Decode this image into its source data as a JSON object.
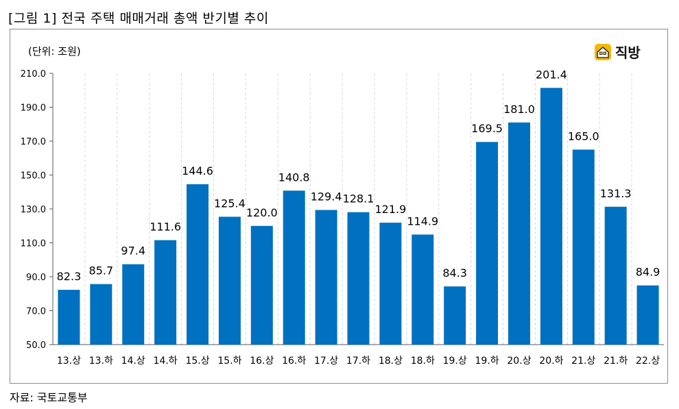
{
  "figure": {
    "title": "[그림 1] 전국 주택 매매거래 총액 반기별 추이",
    "source": "자료: 국토교통부",
    "logo_text": "직방"
  },
  "colors": {
    "bar": "#0070C0",
    "grid": "#d9d9d9",
    "axis": "#595959",
    "logo_yellow": "#F5B800"
  },
  "chart_data": {
    "type": "bar",
    "unit_label": "(단위: 조원)",
    "categories": [
      "13.상",
      "13.하",
      "14.상",
      "14.하",
      "15.상",
      "15.하",
      "16.상",
      "16.하",
      "17.상",
      "17.하",
      "18.상",
      "18.하",
      "19.상",
      "19.하",
      "20.상",
      "20.하",
      "21.상",
      "21.하",
      "22.상"
    ],
    "values": [
      82.3,
      85.7,
      97.4,
      111.6,
      144.6,
      125.4,
      120.0,
      140.8,
      129.4,
      128.1,
      121.9,
      114.9,
      84.3,
      169.5,
      181.0,
      201.4,
      165.0,
      131.3,
      84.9
    ],
    "value_labels": [
      "82.3",
      "85.7",
      "97.4",
      "111.6",
      "144.6",
      "125.4",
      "120.0",
      "140.8",
      "129.4",
      "128.1",
      "121.9",
      "114.9",
      "84.3",
      "169.5",
      "181.0",
      "201.4",
      "165.0",
      "131.3",
      "84.9"
    ],
    "yticks": [
      50,
      70,
      90,
      110,
      130,
      150,
      170,
      190,
      210
    ],
    "ytick_labels": [
      "50.0",
      "70.0",
      "90.0",
      "110.0",
      "130.0",
      "150.0",
      "170.0",
      "190.0",
      "210.0"
    ],
    "ylim": [
      50,
      210
    ],
    "grid": "vertical-dashed",
    "legend": "none"
  }
}
